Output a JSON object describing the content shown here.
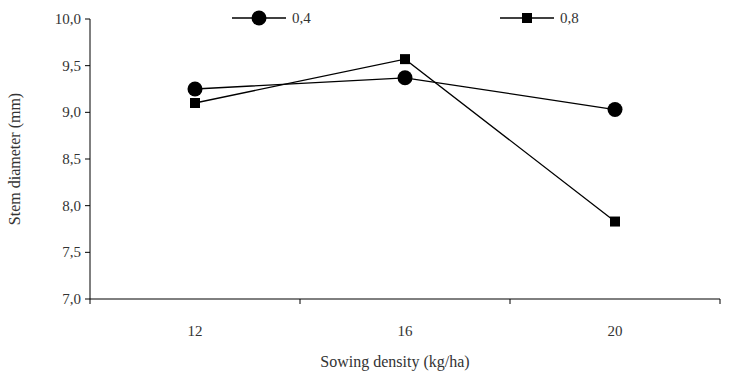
{
  "chart_data": {
    "type": "line",
    "x_label": "Sowing density (kg/ha)",
    "y_label": "Stem diameter (mm)",
    "categories": [
      "12",
      "16",
      "20"
    ],
    "series": [
      {
        "name": "0,4",
        "color": "#000000",
        "marker": "circle",
        "values": [
          9.25,
          9.37,
          9.03
        ]
      },
      {
        "name": "0,8",
        "color": "#000000",
        "marker": "square",
        "values": [
          9.1,
          9.57,
          7.83
        ]
      }
    ],
    "ylim": [
      7,
      10
    ],
    "yticks": [
      {
        "value": 7,
        "label": "7,0"
      },
      {
        "value": 7.5,
        "label": "7,5"
      },
      {
        "value": 8,
        "label": "8,0"
      },
      {
        "value": 8.5,
        "label": "8,5"
      },
      {
        "value": 9,
        "label": "9,0"
      },
      {
        "value": 9.5,
        "label": "9,5"
      },
      {
        "value": 10,
        "label": "10,0"
      }
    ],
    "grid": false,
    "legend": "top"
  }
}
